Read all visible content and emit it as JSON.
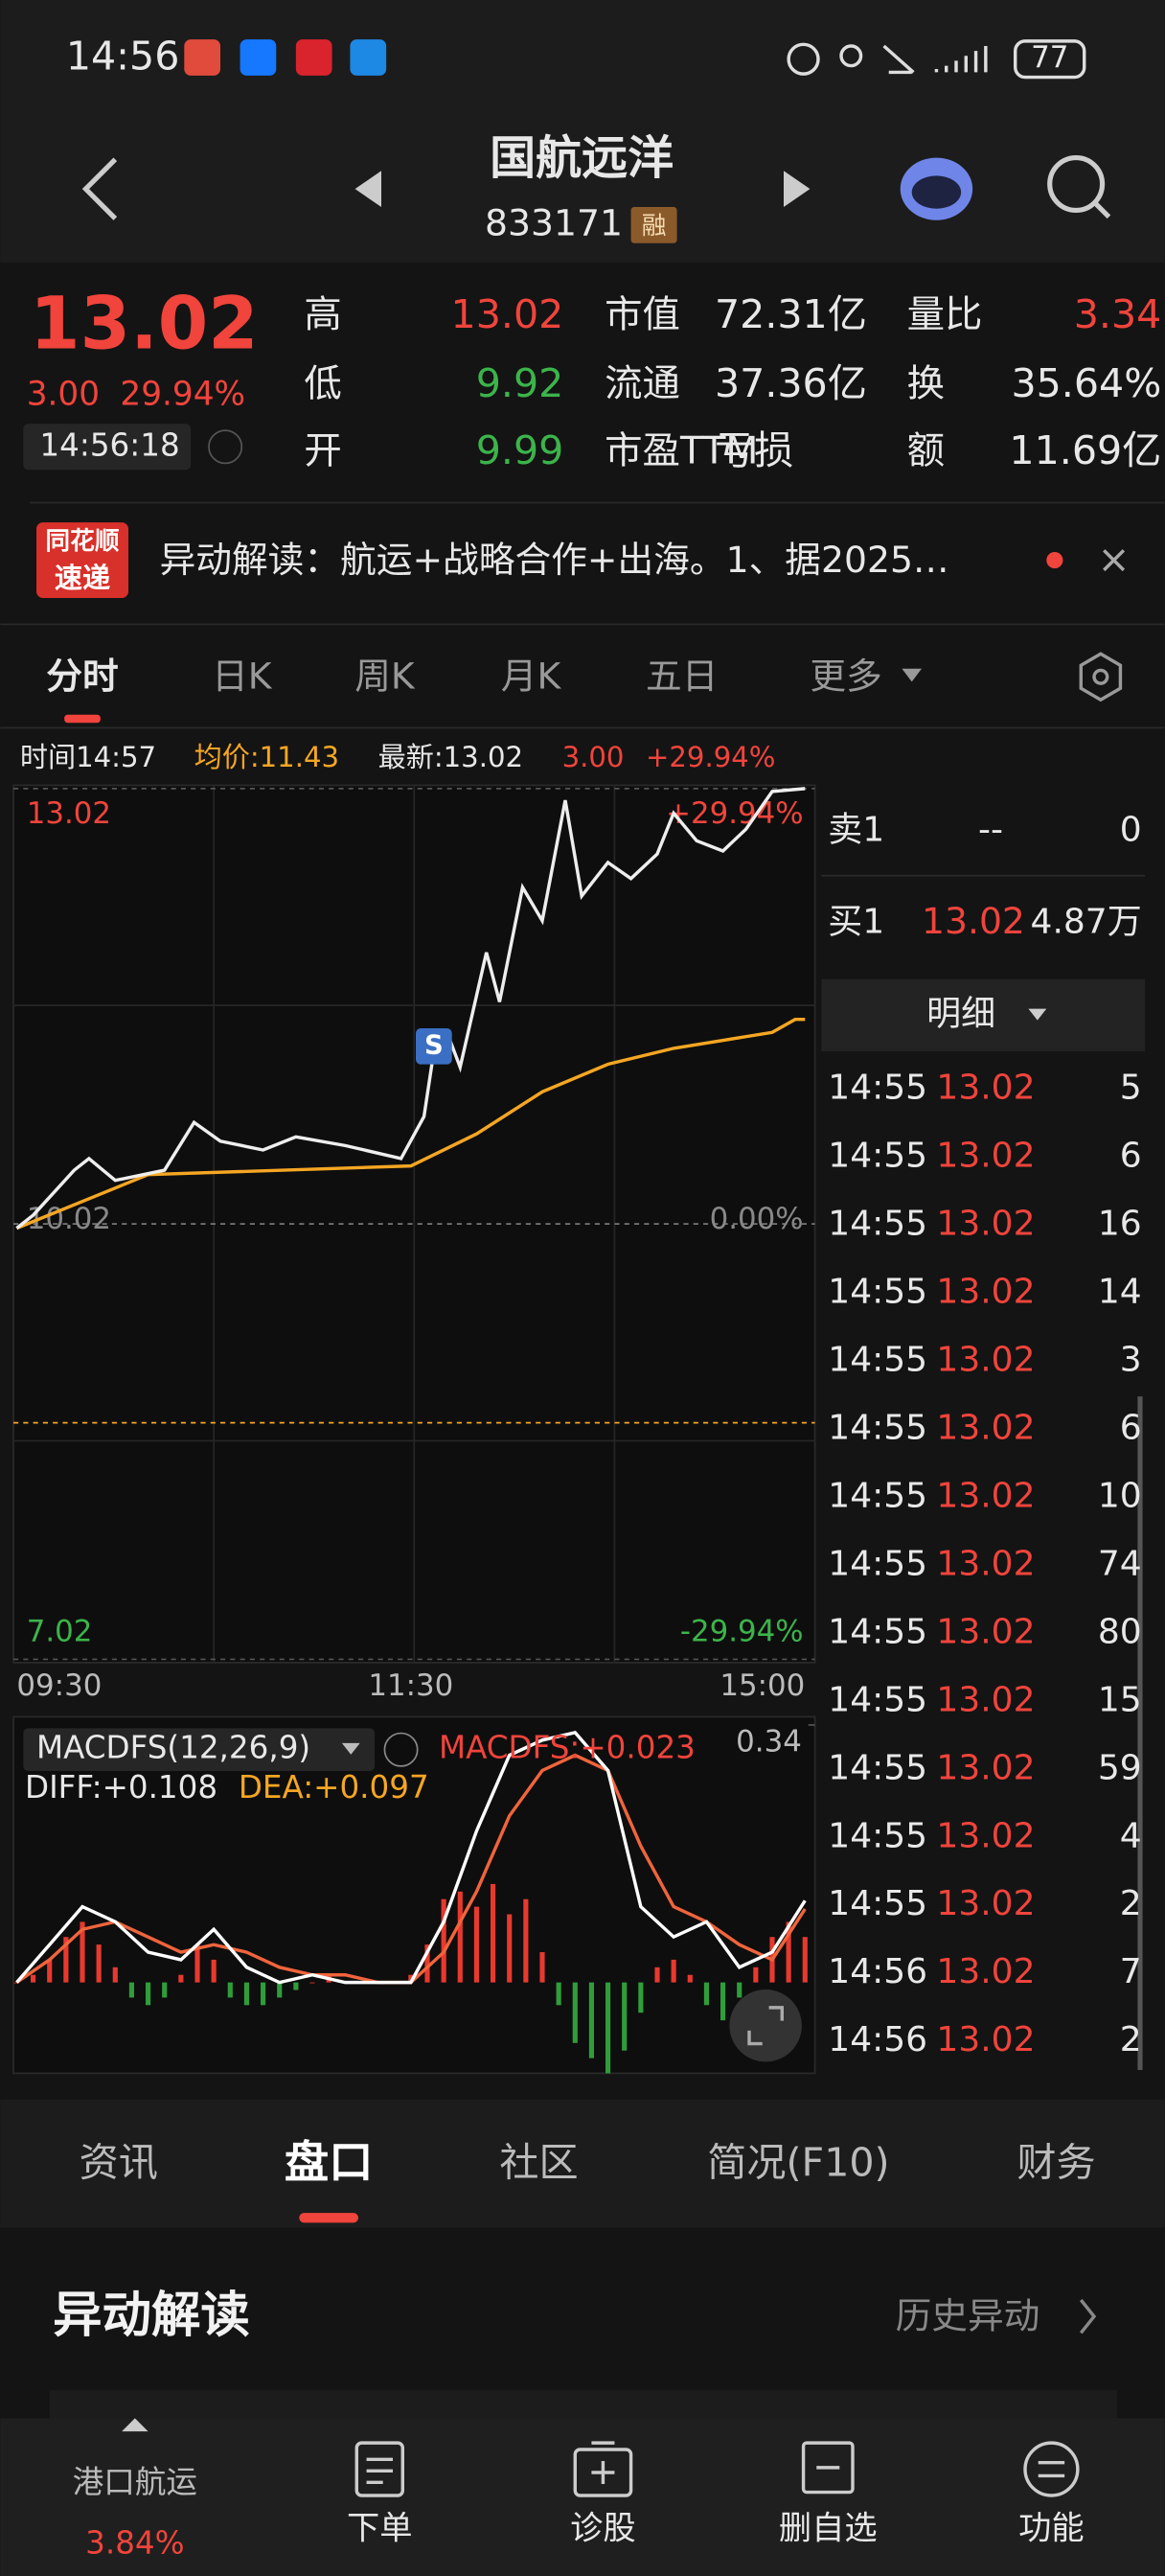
{
  "status_bar": {
    "time": "14:56",
    "battery": "77"
  },
  "header": {
    "title": "国航远洋",
    "code": "833171",
    "badge": "融"
  },
  "quote": {
    "price": "13.02",
    "change": "3.00",
    "change_pct": "29.94%",
    "time": "14:56:18",
    "stats": [
      [
        {
          "label": "高",
          "value": "13.02",
          "color": "#f0443c"
        },
        {
          "label": "市值",
          "value": "72.31亿",
          "color": "#e8e8e8"
        },
        {
          "label": "量比",
          "value": "3.34",
          "color": "#f0443c"
        }
      ],
      [
        {
          "label": "低",
          "value": "9.92",
          "color": "#3cb44b"
        },
        {
          "label": "流通",
          "value": "37.36亿",
          "color": "#e8e8e8"
        },
        {
          "label": "换",
          "value": "35.64%",
          "color": "#e8e8e8"
        }
      ],
      [
        {
          "label": "开",
          "value": "9.99",
          "color": "#3cb44b"
        },
        {
          "label": "市盈TTM",
          "value": "亏损",
          "color": "#e8e8e8"
        },
        {
          "label": "额",
          "value": "11.69亿",
          "color": "#e8e8e8"
        }
      ]
    ]
  },
  "news": {
    "brand_top": "同花顺",
    "brand_bottom": "速递",
    "text": "异动解读：航运+战略合作+出海。1、据2025…"
  },
  "tabs": {
    "items": [
      "分时",
      "日K",
      "周K",
      "月K",
      "五日",
      "更多"
    ],
    "active": 0
  },
  "info_line": {
    "time": "时间14:57",
    "avg": "均价:11.43",
    "latest": "最新:13.02",
    "change": "3.00",
    "change_pct": "+29.94%"
  },
  "intraday": {
    "type": "line",
    "xlim": [
      0,
      240
    ],
    "ylim": [
      7.02,
      13.02
    ],
    "yticks": [
      13.02,
      10.02,
      7.02
    ],
    "pct_ticks": [
      "+29.94%",
      "0.00%",
      "-29.94%"
    ],
    "xticks": [
      {
        "value": 0,
        "label": "09:30"
      },
      {
        "value": 120,
        "label": "11:30"
      },
      {
        "value": 240,
        "label": "15:00"
      }
    ],
    "level_line": 8.65,
    "signal": "S",
    "signal_x": 127,
    "signal_y": 11.21,
    "x": [
      0,
      5,
      17.5,
      22,
      30,
      45,
      54,
      62,
      75,
      85,
      100,
      117,
      124,
      127,
      131,
      135,
      143,
      147,
      154,
      160,
      167,
      172,
      180,
      187,
      195,
      200,
      207,
      215,
      222,
      230,
      240
    ],
    "price": [
      9.99,
      10.08,
      10.39,
      10.47,
      10.32,
      10.39,
      10.72,
      10.59,
      10.53,
      10.62,
      10.56,
      10.47,
      10.76,
      11.21,
      11.34,
      11.1,
      11.89,
      11.55,
      12.34,
      12.11,
      12.94,
      12.28,
      12.51,
      12.4,
      12.57,
      12.85,
      12.66,
      12.59,
      12.74,
      13.0,
      13.02
    ],
    "price_color": "#eeeeee",
    "avg_x": [
      0,
      40,
      120,
      140,
      160,
      180,
      200,
      230,
      237,
      240
    ],
    "avg": [
      9.99,
      10.36,
      10.42,
      10.64,
      10.93,
      11.12,
      11.23,
      11.34,
      11.43,
      11.43
    ],
    "avg_color": "#f5a623"
  },
  "macd": {
    "type": "line",
    "xlim": [
      0,
      240
    ],
    "ylim": [
      -0.12,
      0.34
    ],
    "yticks": [
      0.34
    ],
    "title": "MACDFS(12,26,9)",
    "value_label": "MACDFS:+0.023",
    "diff_label": "DIFF:+0.108",
    "dea_label": "DEA:+0.097",
    "x": [
      0,
      10,
      20,
      30,
      40,
      50,
      60,
      70,
      80,
      90,
      100,
      110,
      120,
      130,
      140,
      150,
      160,
      170,
      180,
      190,
      200,
      210,
      220,
      230,
      240
    ],
    "diff": [
      0,
      0.05,
      0.1,
      0.08,
      0.04,
      0.03,
      0.07,
      0.02,
      0,
      0.01,
      0,
      0,
      0,
      0.08,
      0.2,
      0.3,
      0.32,
      0.33,
      0.28,
      0.1,
      0.06,
      0.08,
      0.02,
      0.04,
      0.108
    ],
    "dea": [
      0,
      0.03,
      0.07,
      0.08,
      0.06,
      0.04,
      0.05,
      0.04,
      0.02,
      0.01,
      0.01,
      0,
      0,
      0.04,
      0.12,
      0.22,
      0.28,
      0.3,
      0.28,
      0.18,
      0.1,
      0.08,
      0.05,
      0.03,
      0.097
    ],
    "diff_color": "#ffffff",
    "dea_color": "#f0643c",
    "hist_x": [
      0,
      5,
      10,
      15,
      20,
      25,
      30,
      35,
      40,
      45,
      50,
      55,
      60,
      65,
      70,
      75,
      80,
      85,
      90,
      95,
      100,
      105,
      110,
      115,
      120,
      125,
      130,
      135,
      140,
      145,
      150,
      155,
      160,
      165,
      170,
      175,
      180,
      185,
      190,
      195,
      200,
      205,
      210,
      215,
      220,
      225,
      230,
      235,
      240
    ],
    "hist": [
      0,
      0.01,
      0.03,
      0.06,
      0.08,
      0.05,
      0.02,
      -0.02,
      -0.03,
      -0.02,
      0.01,
      0.05,
      0.03,
      -0.02,
      -0.03,
      -0.03,
      -0.02,
      -0.01,
      0,
      0.01,
      0,
      0,
      0,
      0,
      0.01,
      0.05,
      0.11,
      0.12,
      0.1,
      0.13,
      0.09,
      0.11,
      0.04,
      -0.03,
      -0.08,
      -0.1,
      -0.12,
      -0.09,
      -0.04,
      0.02,
      0.03,
      0.01,
      -0.03,
      -0.05,
      -0.02,
      0.02,
      0.06,
      0.08,
      0.06
    ],
    "up_color": "#e8392f",
    "down_color": "#2f9e3a"
  },
  "order_book": {
    "sell": {
      "label": "卖1",
      "price": "--",
      "volume": "0"
    },
    "buy": {
      "label": "买1",
      "price": "13.02",
      "volume": "4.87万"
    },
    "detail_title": "明细",
    "trades": [
      [
        "14:55",
        "13.02",
        "5"
      ],
      [
        "14:55",
        "13.02",
        "6"
      ],
      [
        "14:55",
        "13.02",
        "16"
      ],
      [
        "14:55",
        "13.02",
        "14"
      ],
      [
        "14:55",
        "13.02",
        "3"
      ],
      [
        "14:55",
        "13.02",
        "6"
      ],
      [
        "14:55",
        "13.02",
        "10"
      ],
      [
        "14:55",
        "13.02",
        "74"
      ],
      [
        "14:55",
        "13.02",
        "80"
      ],
      [
        "14:55",
        "13.02",
        "15"
      ],
      [
        "14:55",
        "13.02",
        "59"
      ],
      [
        "14:55",
        "13.02",
        "4"
      ],
      [
        "14:55",
        "13.02",
        "2"
      ],
      [
        "14:56",
        "13.02",
        "7"
      ],
      [
        "14:56",
        "13.02",
        "2"
      ]
    ]
  },
  "section_tabs": {
    "items": [
      "资讯",
      "盘口",
      "社区",
      "简况(F10)",
      "财务"
    ],
    "active": 1
  },
  "section": {
    "title": "异动解读",
    "link": "历史异动"
  },
  "bottom_nav": {
    "sector": "港口航运",
    "sector_pct": "3.84%",
    "items": [
      "下单",
      "诊股",
      "删自选",
      "功能"
    ]
  }
}
